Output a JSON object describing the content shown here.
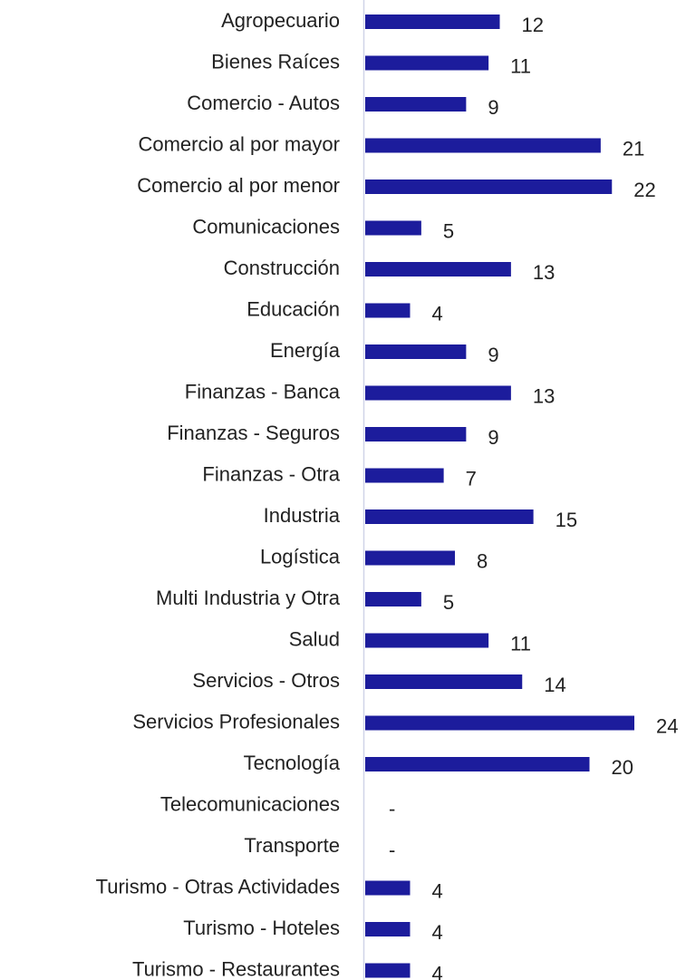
{
  "chart_data": {
    "type": "barh",
    "color": "#1c1c9c",
    "categories": [
      "Agropecuario",
      "Bienes Raíces",
      "Comercio - Autos",
      "Comercio al por mayor",
      "Comercio al por menor",
      "Comunicaciones",
      "Construcción",
      "Educación",
      "Energía",
      "Finanzas - Banca",
      "Finanzas - Seguros",
      "Finanzas - Otra",
      "Industria",
      "Logística",
      "Multi Industria y Otra",
      "Salud",
      "Servicios - Otros",
      "Servicios Profesionales",
      "Tecnología",
      "Telecomunicaciones",
      "Transporte",
      "Turismo - Otras Actividades",
      "Turismo - Hoteles",
      "Turismo - Restaurantes"
    ],
    "values": [
      12,
      11,
      9,
      21,
      22,
      5,
      13,
      4,
      9,
      13,
      9,
      7,
      15,
      8,
      5,
      11,
      14,
      24,
      20,
      0,
      0,
      4,
      4,
      4
    ],
    "value_labels": [
      "12",
      "11",
      "9",
      "21",
      "22",
      "5",
      "13",
      "4",
      "9",
      "13",
      "9",
      "7",
      "15",
      "8",
      "5",
      "11",
      "14",
      "24",
      "20",
      "-",
      "-",
      "4",
      "4",
      "4"
    ]
  }
}
